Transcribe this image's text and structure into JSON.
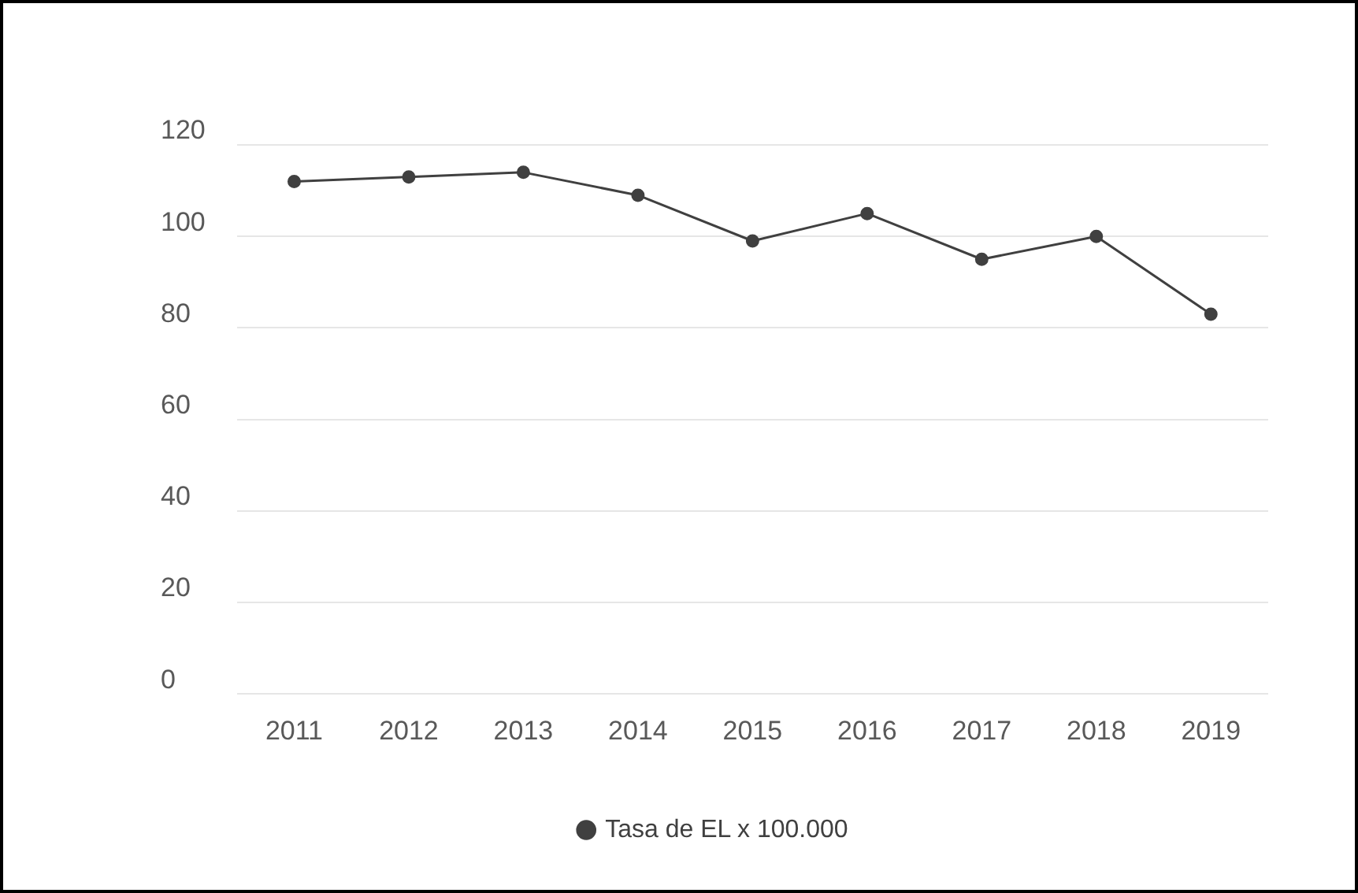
{
  "chart_data": {
    "type": "line",
    "categories": [
      "2011",
      "2012",
      "2013",
      "2014",
      "2015",
      "2016",
      "2017",
      "2018",
      "2019"
    ],
    "series": [
      {
        "name": "Tasa de EL x 100.000",
        "color": "#404040",
        "values": [
          112,
          113,
          114,
          109,
          99,
          105,
          95,
          100,
          83
        ]
      }
    ],
    "ylim": [
      0,
      120
    ],
    "yticks": [
      0,
      20,
      40,
      60,
      80,
      100,
      120
    ],
    "grid": "y",
    "legend": "bottom",
    "marker": "circle",
    "line_style": "solid"
  }
}
